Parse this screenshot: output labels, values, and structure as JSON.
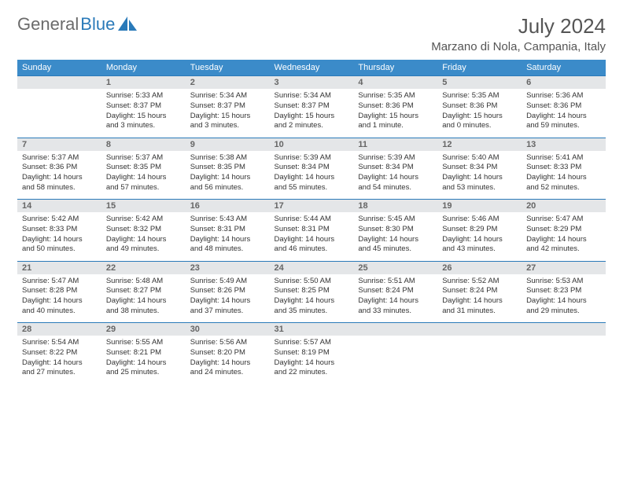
{
  "brand": {
    "name1": "General",
    "name2": "Blue"
  },
  "title": "July 2024",
  "location": "Marzano di Nola, Campania, Italy",
  "colors": {
    "header_bg": "#3b8bc9",
    "daynum_bg": "#e4e6e8",
    "accent": "#2a7ab9"
  },
  "dow": [
    "Sunday",
    "Monday",
    "Tuesday",
    "Wednesday",
    "Thursday",
    "Friday",
    "Saturday"
  ],
  "weeks": [
    [
      null,
      {
        "n": "1",
        "sr": "5:33 AM",
        "ss": "8:37 PM",
        "d": "15 hours and 3 minutes."
      },
      {
        "n": "2",
        "sr": "5:34 AM",
        "ss": "8:37 PM",
        "d": "15 hours and 3 minutes."
      },
      {
        "n": "3",
        "sr": "5:34 AM",
        "ss": "8:37 PM",
        "d": "15 hours and 2 minutes."
      },
      {
        "n": "4",
        "sr": "5:35 AM",
        "ss": "8:36 PM",
        "d": "15 hours and 1 minute."
      },
      {
        "n": "5",
        "sr": "5:35 AM",
        "ss": "8:36 PM",
        "d": "15 hours and 0 minutes."
      },
      {
        "n": "6",
        "sr": "5:36 AM",
        "ss": "8:36 PM",
        "d": "14 hours and 59 minutes."
      }
    ],
    [
      {
        "n": "7",
        "sr": "5:37 AM",
        "ss": "8:36 PM",
        "d": "14 hours and 58 minutes."
      },
      {
        "n": "8",
        "sr": "5:37 AM",
        "ss": "8:35 PM",
        "d": "14 hours and 57 minutes."
      },
      {
        "n": "9",
        "sr": "5:38 AM",
        "ss": "8:35 PM",
        "d": "14 hours and 56 minutes."
      },
      {
        "n": "10",
        "sr": "5:39 AM",
        "ss": "8:34 PM",
        "d": "14 hours and 55 minutes."
      },
      {
        "n": "11",
        "sr": "5:39 AM",
        "ss": "8:34 PM",
        "d": "14 hours and 54 minutes."
      },
      {
        "n": "12",
        "sr": "5:40 AM",
        "ss": "8:34 PM",
        "d": "14 hours and 53 minutes."
      },
      {
        "n": "13",
        "sr": "5:41 AM",
        "ss": "8:33 PM",
        "d": "14 hours and 52 minutes."
      }
    ],
    [
      {
        "n": "14",
        "sr": "5:42 AM",
        "ss": "8:33 PM",
        "d": "14 hours and 50 minutes."
      },
      {
        "n": "15",
        "sr": "5:42 AM",
        "ss": "8:32 PM",
        "d": "14 hours and 49 minutes."
      },
      {
        "n": "16",
        "sr": "5:43 AM",
        "ss": "8:31 PM",
        "d": "14 hours and 48 minutes."
      },
      {
        "n": "17",
        "sr": "5:44 AM",
        "ss": "8:31 PM",
        "d": "14 hours and 46 minutes."
      },
      {
        "n": "18",
        "sr": "5:45 AM",
        "ss": "8:30 PM",
        "d": "14 hours and 45 minutes."
      },
      {
        "n": "19",
        "sr": "5:46 AM",
        "ss": "8:29 PM",
        "d": "14 hours and 43 minutes."
      },
      {
        "n": "20",
        "sr": "5:47 AM",
        "ss": "8:29 PM",
        "d": "14 hours and 42 minutes."
      }
    ],
    [
      {
        "n": "21",
        "sr": "5:47 AM",
        "ss": "8:28 PM",
        "d": "14 hours and 40 minutes."
      },
      {
        "n": "22",
        "sr": "5:48 AM",
        "ss": "8:27 PM",
        "d": "14 hours and 38 minutes."
      },
      {
        "n": "23",
        "sr": "5:49 AM",
        "ss": "8:26 PM",
        "d": "14 hours and 37 minutes."
      },
      {
        "n": "24",
        "sr": "5:50 AM",
        "ss": "8:25 PM",
        "d": "14 hours and 35 minutes."
      },
      {
        "n": "25",
        "sr": "5:51 AM",
        "ss": "8:24 PM",
        "d": "14 hours and 33 minutes."
      },
      {
        "n": "26",
        "sr": "5:52 AM",
        "ss": "8:24 PM",
        "d": "14 hours and 31 minutes."
      },
      {
        "n": "27",
        "sr": "5:53 AM",
        "ss": "8:23 PM",
        "d": "14 hours and 29 minutes."
      }
    ],
    [
      {
        "n": "28",
        "sr": "5:54 AM",
        "ss": "8:22 PM",
        "d": "14 hours and 27 minutes."
      },
      {
        "n": "29",
        "sr": "5:55 AM",
        "ss": "8:21 PM",
        "d": "14 hours and 25 minutes."
      },
      {
        "n": "30",
        "sr": "5:56 AM",
        "ss": "8:20 PM",
        "d": "14 hours and 24 minutes."
      },
      {
        "n": "31",
        "sr": "5:57 AM",
        "ss": "8:19 PM",
        "d": "14 hours and 22 minutes."
      },
      null,
      null,
      null
    ]
  ],
  "labels": {
    "sunrise": "Sunrise:",
    "sunset": "Sunset:",
    "daylight": "Daylight:"
  }
}
